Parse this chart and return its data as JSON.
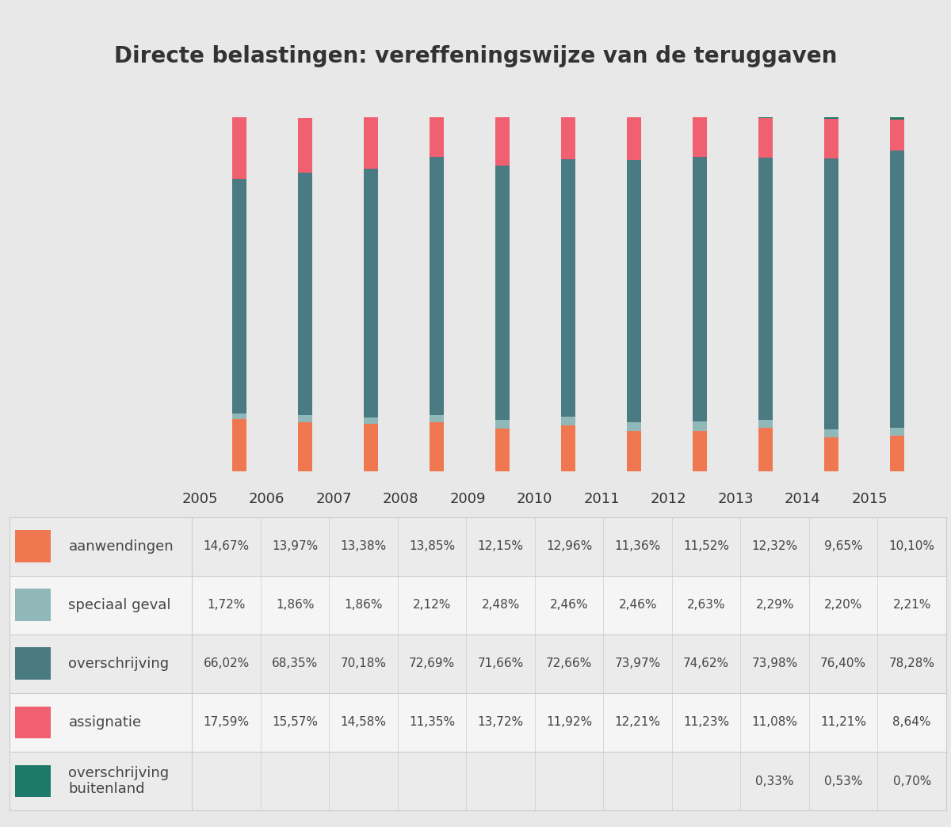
{
  "title": "Directe belastingen: vereffeningswijze van de teruggaven",
  "years": [
    2005,
    2006,
    2007,
    2008,
    2009,
    2010,
    2011,
    2012,
    2013,
    2014,
    2015
  ],
  "colors": [
    "#F07850",
    "#90B8B8",
    "#4A7A82",
    "#F06070",
    "#1E7A68"
  ],
  "data": {
    "aanwendingen": [
      14.67,
      13.97,
      13.38,
      13.85,
      12.15,
      12.96,
      11.36,
      11.52,
      12.32,
      9.65,
      10.1
    ],
    "speciaal geval": [
      1.72,
      1.86,
      1.86,
      2.12,
      2.48,
      2.46,
      2.46,
      2.63,
      2.29,
      2.2,
      2.21
    ],
    "overschrijving": [
      66.02,
      68.35,
      70.18,
      72.69,
      71.66,
      72.66,
      73.97,
      74.62,
      73.98,
      76.4,
      78.28
    ],
    "assignatie": [
      17.59,
      15.57,
      14.58,
      11.35,
      13.72,
      11.92,
      12.21,
      11.23,
      11.08,
      11.21,
      8.64
    ],
    "overschrijving buitenland": [
      0,
      0,
      0,
      0,
      0,
      0,
      0,
      0,
      0.33,
      0.53,
      0.7
    ]
  },
  "table_labels": {
    "aanwendingen": [
      "14,67%",
      "13,97%",
      "13,38%",
      "13,85%",
      "12,15%",
      "12,96%",
      "11,36%",
      "11,52%",
      "12,32%",
      "9,65%",
      "10,10%"
    ],
    "speciaal geval": [
      "1,72%",
      "1,86%",
      "1,86%",
      "2,12%",
      "2,48%",
      "2,46%",
      "2,46%",
      "2,63%",
      "2,29%",
      "2,20%",
      "2,21%"
    ],
    "overschrijving": [
      "66,02%",
      "68,35%",
      "70,18%",
      "72,69%",
      "71,66%",
      "72,66%",
      "73,97%",
      "74,62%",
      "73,98%",
      "76,40%",
      "78,28%"
    ],
    "assignatie": [
      "17,59%",
      "15,57%",
      "14,58%",
      "11,35%",
      "13,72%",
      "11,92%",
      "12,21%",
      "11,23%",
      "11,08%",
      "11,21%",
      "8,64%"
    ],
    "overschrijving buitenland": [
      "",
      "",
      "",
      "",
      "",
      "",
      "",
      "",
      "0,33%",
      "0,53%",
      "0,70%"
    ]
  },
  "row_labels": [
    "aanwendingen",
    "speciaal geval",
    "overschrijving",
    "assignatie",
    "overschrijving\nbuitenland"
  ],
  "cat_keys": [
    "aanwendingen",
    "speciaal geval",
    "overschrijving",
    "assignatie",
    "overschrijving buitenland"
  ],
  "background_color": "#E8E8E8",
  "bar_width": 0.22,
  "title_fontsize": 20,
  "table_fontsize": 11,
  "label_fontsize": 13,
  "year_fontsize": 13
}
